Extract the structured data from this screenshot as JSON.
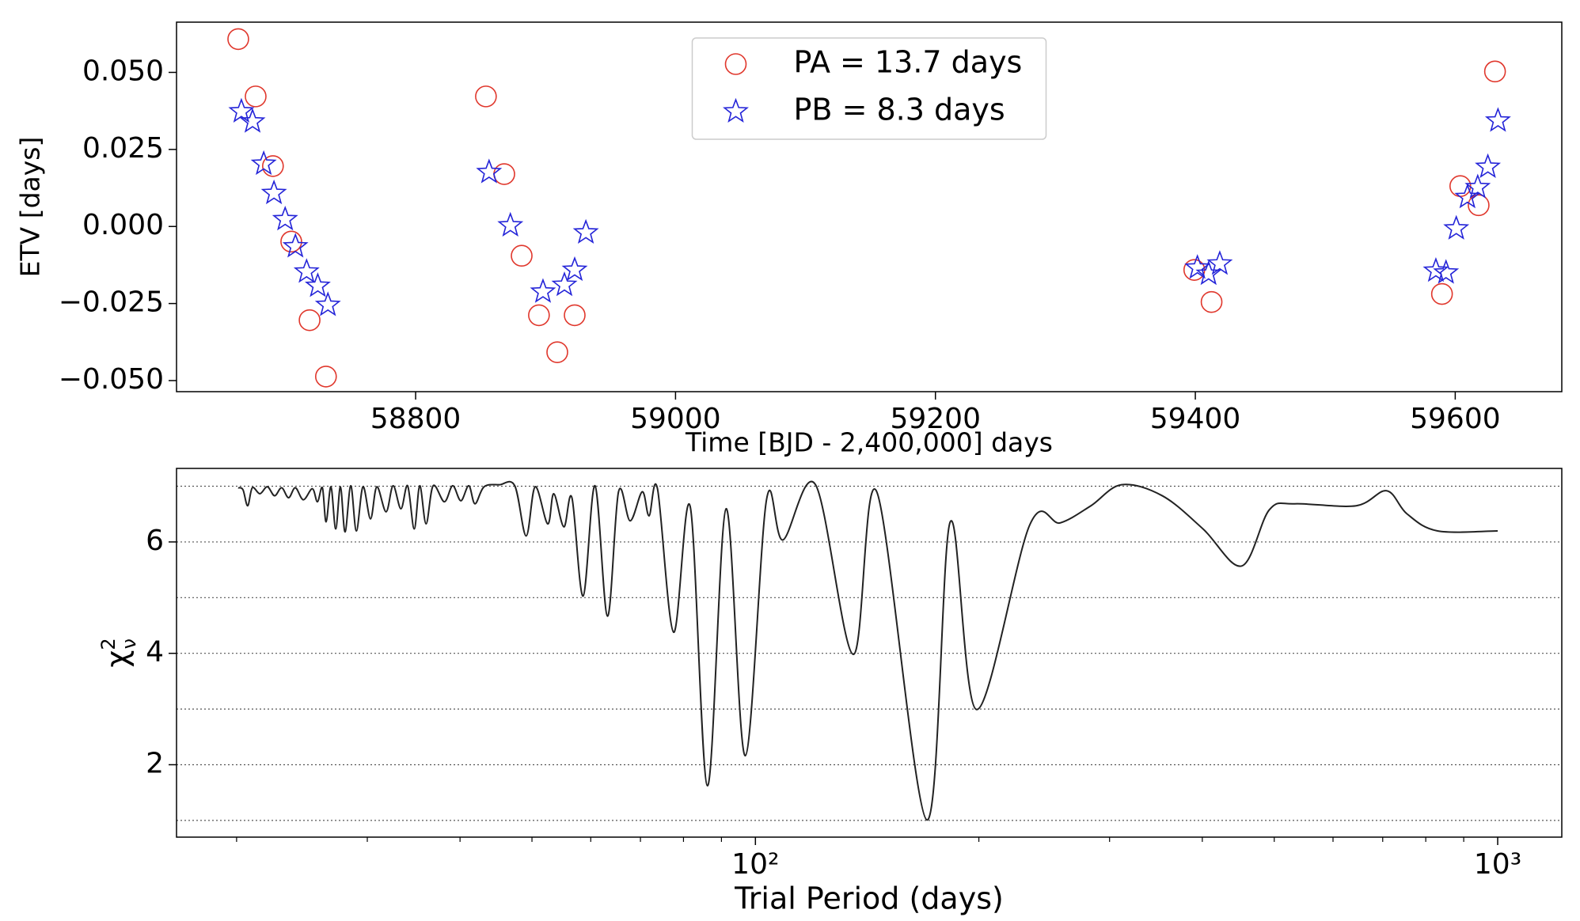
{
  "chart_data": [
    {
      "type": "scatter",
      "xlabel": "Time [BJD - 2,400,000] days",
      "ylabel": "ETV [days]",
      "xlim": [
        58616,
        59682
      ],
      "ylim": [
        -0.0536,
        0.0663
      ],
      "xticks": [
        58800,
        59000,
        59200,
        59400,
        59600
      ],
      "yticks": [
        {
          "value": 0.05,
          "label": "0.050"
        },
        {
          "value": 0.025,
          "label": "0.025"
        },
        {
          "value": 0,
          "label": "0.000"
        },
        {
          "value": -0.025,
          "label": "−0.025"
        },
        {
          "value": -0.05,
          "label": "−0.050"
        }
      ],
      "legend": "upper center",
      "series": [
        {
          "name": "PA = 13.7 days",
          "color": "#e0372c",
          "marker": "circle",
          "x": [
            58663.5,
            58676.9,
            58690.2,
            58704.3,
            58718.4,
            58731.0,
            58854.1,
            58868.2,
            58881.6,
            58894.9,
            58909.0,
            58922.4,
            59399.2,
            59412.5,
            59589.8,
            59603.9,
            59618.0,
            59630.6
          ],
          "values": [
            0.0608,
            0.0422,
            0.0196,
            -0.0049,
            -0.0304,
            -0.0487,
            0.0422,
            0.017,
            -0.0095,
            -0.0288,
            -0.0408,
            -0.0288,
            -0.0141,
            -0.0245,
            -0.0219,
            0.0131,
            0.0069,
            0.0503
          ]
        },
        {
          "name": "PB = 8.3 days",
          "color": "#2424d8",
          "marker": "star",
          "x": [
            58665.9,
            58674.5,
            58683.1,
            58691.0,
            58699.6,
            58707.5,
            58716.1,
            58724.7,
            58732.5,
            58856.5,
            58872.9,
            58898.0,
            58914.5,
            58922.4,
            58931.0,
            59401.6,
            59410.2,
            59418.8,
            59585.1,
            59592.9,
            59600.8,
            59609.4,
            59617.3,
            59625.1,
            59632.9
          ],
          "values": [
            0.0373,
            0.034,
            0.0203,
            0.0108,
            0.0023,
            -0.0065,
            -0.0147,
            -0.0193,
            -0.0255,
            0.0176,
            0.0003,
            -0.0212,
            -0.019,
            -0.0141,
            -0.002,
            -0.0134,
            -0.0154,
            -0.0121,
            -0.0144,
            -0.015,
            -0.0007,
            0.0095,
            0.0127,
            0.0193,
            0.0343
          ]
        }
      ]
    },
    {
      "type": "line",
      "xlabel": "Trial Period (days)",
      "ylabel": {
        "base": "χ",
        "sup": "2",
        "sub": "ν"
      },
      "xscale": "log",
      "xlim": [
        16.6,
        1220
      ],
      "ylim": [
        0.7,
        7.32
      ],
      "xticks": [
        {
          "value": 100,
          "label": "10²"
        },
        {
          "value": 1000,
          "label": "10³"
        }
      ],
      "xminorticks": [
        20,
        30,
        40,
        50,
        60,
        70,
        80,
        90,
        200,
        300,
        400,
        500,
        600,
        700,
        800,
        900
      ],
      "yticks": [
        2,
        4,
        6
      ],
      "ygrid": [
        1,
        2,
        3,
        4,
        5,
        6,
        7
      ],
      "grid_style": "dotted",
      "series": [
        {
          "color": "#222222",
          "x": [
            20.1,
            20.4,
            20.7,
            21.0,
            21.5,
            22.0,
            22.5,
            23.0,
            23.5,
            24.0,
            24.6,
            25.3,
            25.7,
            26.1,
            26.4,
            26.8,
            27.2,
            27.6,
            28.0,
            28.5,
            29.0,
            29.6,
            30.3,
            30.9,
            31.8,
            32.5,
            33.3,
            34.0,
            34.7,
            35.3,
            36.0,
            36.8,
            38.1,
            39.1,
            40.1,
            41.1,
            41.9,
            43.1,
            45.2,
            47.4,
            49.1,
            50.5,
            52.5,
            53.5,
            55.2,
            56.6,
            58.6,
            60.8,
            63.2,
            65.4,
            67.8,
            70.4,
            71.9,
            73.8,
            77.6,
            81.7,
            86.2,
            91.3,
            96.9,
            103.5,
            108.9,
            120.5,
            135.5,
            145.7,
            170.2,
            183.0,
            198.7,
            234.2,
            257.5,
            283.1,
            311.3,
            353.3,
            400.9,
            452.0,
            492.4,
            532.9,
            644.5,
            708.6,
            754.6,
            829.8,
            1000
          ],
          "values": [
            6.973,
            6.937,
            6.649,
            6.973,
            6.865,
            6.991,
            6.829,
            6.973,
            6.793,
            6.973,
            6.757,
            6.955,
            6.721,
            6.973,
            6.36,
            6.991,
            6.234,
            6.991,
            6.18,
            7.009,
            6.198,
            6.991,
            6.414,
            6.991,
            6.541,
            7.009,
            6.595,
            7.009,
            6.234,
            7.009,
            6.324,
            7.009,
            6.721,
            7.009,
            6.739,
            7.009,
            6.685,
            6.991,
            7.027,
            7.009,
            6.108,
            6.991,
            6.324,
            6.865,
            6.27,
            6.793,
            5.027,
            7.009,
            4.667,
            6.901,
            6.378,
            6.901,
            6.468,
            6.955,
            4.378,
            6.631,
            1.622,
            6.595,
            2.162,
            6.757,
            6.036,
            7.027,
            3.982,
            6.901,
            1.009,
            6.36,
            2.991,
            6.306,
            6.342,
            6.649,
            7.027,
            6.829,
            6.234,
            5.568,
            6.577,
            6.685,
            6.649,
            6.919,
            6.505,
            6.198,
            6.198
          ]
        }
      ]
    }
  ]
}
